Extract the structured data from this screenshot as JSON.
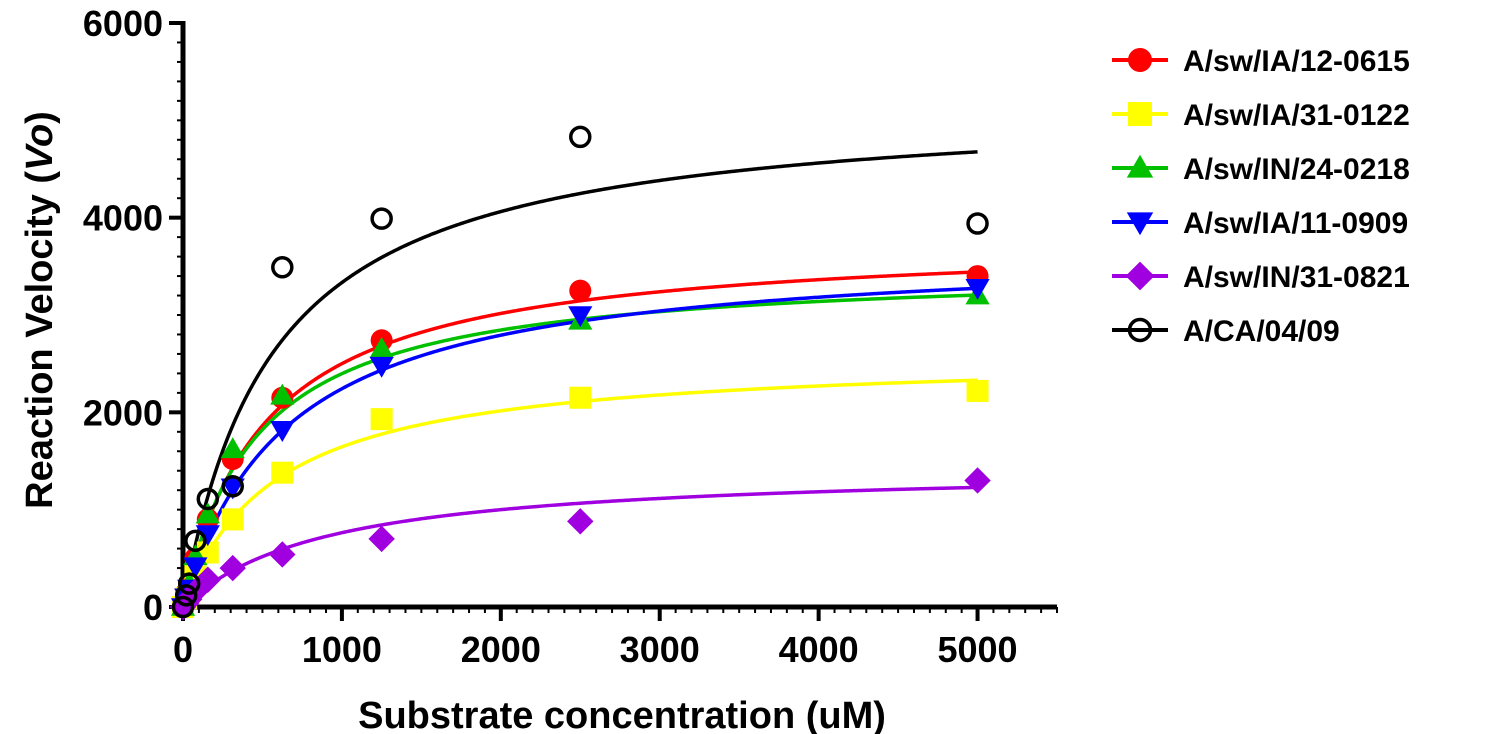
{
  "chart_data": {
    "type": "scatter",
    "xlabel": "Substrate concentration (uM)",
    "ylabel_main": "Reaction Velocity (",
    "ylabel_italic": "Vo",
    "ylabel_end": ")",
    "xlim": [
      0,
      5500
    ],
    "ylim": [
      0,
      6000
    ],
    "x_ticks": [
      0,
      1000,
      2000,
      3000,
      4000,
      5000
    ],
    "x_tick_labels": [
      "0",
      "1000",
      "2000",
      "3000",
      "4000",
      "5000"
    ],
    "y_ticks": [
      0,
      2000,
      4000,
      6000
    ],
    "y_tick_labels": [
      "0",
      "2000",
      "4000",
      "6000"
    ],
    "legend_position": "right",
    "grid": false,
    "series": [
      {
        "name": "A/sw/IA/12-0615",
        "color": "#ff0000",
        "marker": "circle",
        "vmax": 3800,
        "km": 520,
        "x": [
          0,
          20,
          39,
          78,
          156,
          313,
          625,
          1250,
          2500,
          5000
        ],
        "y": [
          0,
          120,
          220,
          500,
          900,
          1520,
          2150,
          2740,
          3250,
          3400
        ]
      },
      {
        "name": "A/sw/IA/31-0122",
        "color": "#ffff00",
        "marker": "square",
        "vmax": 2600,
        "km": 580,
        "x": [
          0,
          20,
          39,
          78,
          156,
          313,
          625,
          1250,
          2500,
          5000
        ],
        "y": [
          0,
          90,
          160,
          330,
          560,
          900,
          1380,
          1930,
          2150,
          2220
        ]
      },
      {
        "name": "A/sw/IN/24-0218",
        "color": "#00c000",
        "marker": "triangle-up",
        "vmax": 3500,
        "km": 460,
        "x": [
          0,
          20,
          39,
          78,
          156,
          313,
          625,
          1250,
          2500,
          5000
        ],
        "y": [
          0,
          130,
          240,
          520,
          950,
          1620,
          2170,
          2650,
          2940,
          3200
        ]
      },
      {
        "name": "A/sw/IA/11-0909",
        "color": "#0000ff",
        "marker": "triangle-down",
        "vmax": 3700,
        "km": 650,
        "x": [
          0,
          20,
          39,
          78,
          156,
          313,
          625,
          1250,
          2500,
          5000
        ],
        "y": [
          0,
          100,
          190,
          420,
          750,
          1230,
          1820,
          2480,
          3000,
          3280
        ]
      },
      {
        "name": "A/sw/IN/31-0821",
        "color": "#a000e0",
        "marker": "diamond",
        "vmax": 1450,
        "km": 900,
        "x": [
          0,
          20,
          39,
          78,
          156,
          313,
          625,
          1250,
          2500,
          5000
        ],
        "y": [
          0,
          40,
          80,
          160,
          280,
          400,
          540,
          700,
          880,
          1300
        ]
      },
      {
        "name": "A/CA/04/09",
        "color": "#000000",
        "marker": "open-circle",
        "vmax": 5200,
        "km": 560,
        "x": [
          0,
          20,
          39,
          78,
          156,
          313,
          625,
          1250,
          2500,
          5000
        ],
        "y": [
          0,
          120,
          240,
          680,
          1110,
          1240,
          3490,
          3990,
          4830,
          3940
        ]
      }
    ]
  }
}
